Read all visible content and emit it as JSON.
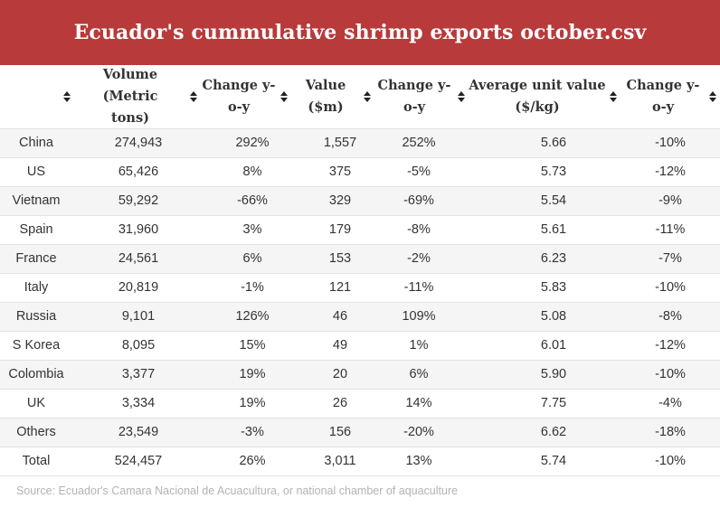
{
  "title": "Ecuador's cummulative shrimp exports october.csv",
  "colors": {
    "banner": "#b83a3a",
    "row_shade": "#f5f5f5",
    "border": "#e2e2e2",
    "source_text": "#b3b3b3"
  },
  "columns": [
    {
      "label": "",
      "icon": "sort-icon"
    },
    {
      "label": "Volume (Metric tons)",
      "icon": "sort-icon"
    },
    {
      "label": "Change y-o-y",
      "icon": "sort-icon"
    },
    {
      "label": "Value ($m)",
      "icon": "sort-icon"
    },
    {
      "label": "Change y-o-y",
      "icon": "sort-icon"
    },
    {
      "label": "Average unit value ($/kg)",
      "icon": "sort-icon"
    },
    {
      "label": "Change y-o-y",
      "icon": "sort-icon"
    }
  ],
  "rows": [
    [
      "China",
      "274,943",
      "292%",
      "1,557",
      "252%",
      "5.66",
      "-10%"
    ],
    [
      "US",
      "65,426",
      "8%",
      "375",
      "-5%",
      "5.73",
      "-12%"
    ],
    [
      "Vietnam",
      "59,292",
      "-66%",
      "329",
      "-69%",
      "5.54",
      "-9%"
    ],
    [
      "Spain",
      "31,960",
      "3%",
      "179",
      "-8%",
      "5.61",
      "-11%"
    ],
    [
      "France",
      "24,561",
      "6%",
      "153",
      "-2%",
      "6.23",
      "-7%"
    ],
    [
      "Italy",
      "20,819",
      "-1%",
      "121",
      "-11%",
      "5.83",
      "-10%"
    ],
    [
      "Russia",
      "9,101",
      "126%",
      "46",
      "109%",
      "5.08",
      "-8%"
    ],
    [
      "S Korea",
      "8,095",
      "15%",
      "49",
      "1%",
      "6.01",
      "-12%"
    ],
    [
      "Colombia",
      "3,377",
      "19%",
      "20",
      "6%",
      "5.90",
      "-10%"
    ],
    [
      "UK",
      "3,334",
      "19%",
      "26",
      "14%",
      "7.75",
      "-4%"
    ],
    [
      "Others",
      "23,549",
      "-3%",
      "156",
      "-20%",
      "6.62",
      "-18%"
    ],
    [
      "Total",
      "524,457",
      "26%",
      "3,011",
      "13%",
      "5.74",
      "-10%"
    ]
  ],
  "source": "Source: Ecuador's Camara Nacional de Acuacultura, or national chamber of aquaculture"
}
